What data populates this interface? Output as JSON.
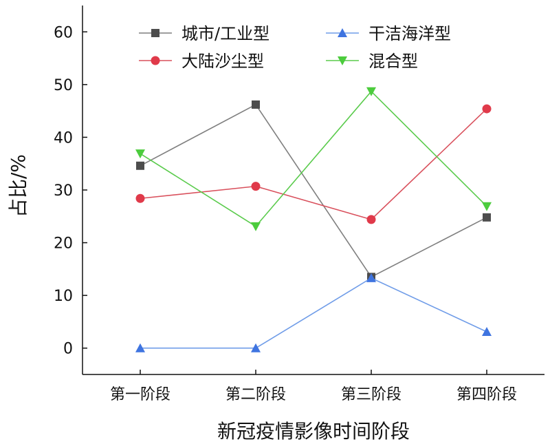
{
  "chart_data": {
    "type": "line",
    "title": "",
    "xlabel": "新冠疫情影像时间阶段",
    "ylabel": "占比/%",
    "categories": [
      "第一阶段",
      "第二阶段",
      "第三阶段",
      "第四阶段"
    ],
    "ylim": [
      -5,
      65
    ],
    "yticks": [
      0,
      10,
      20,
      30,
      40,
      50,
      60
    ],
    "grid": false,
    "legend_position": "top",
    "series": [
      {
        "name": "城市/工业型",
        "values": [
          34.6,
          46.2,
          13.5,
          24.8
        ],
        "color": "#4d4d4d",
        "line_color": "#7f7f7f",
        "marker": "square"
      },
      {
        "name": "干洁海洋型",
        "values": [
          0,
          0,
          13.3,
          3.1
        ],
        "color": "#3f74e0",
        "line_color": "#6f9ce8",
        "marker": "triangle-up"
      },
      {
        "name": "大陆沙尘型",
        "values": [
          28.4,
          30.7,
          24.4,
          45.4
        ],
        "color": "#e03a4a",
        "line_color": "#d9505c",
        "marker": "circle"
      },
      {
        "name": "混合型",
        "values": [
          36.9,
          23.1,
          48.7,
          26.9
        ],
        "color": "#4ccc3d",
        "line_color": "#5acb4c",
        "marker": "triangle-down"
      }
    ]
  }
}
